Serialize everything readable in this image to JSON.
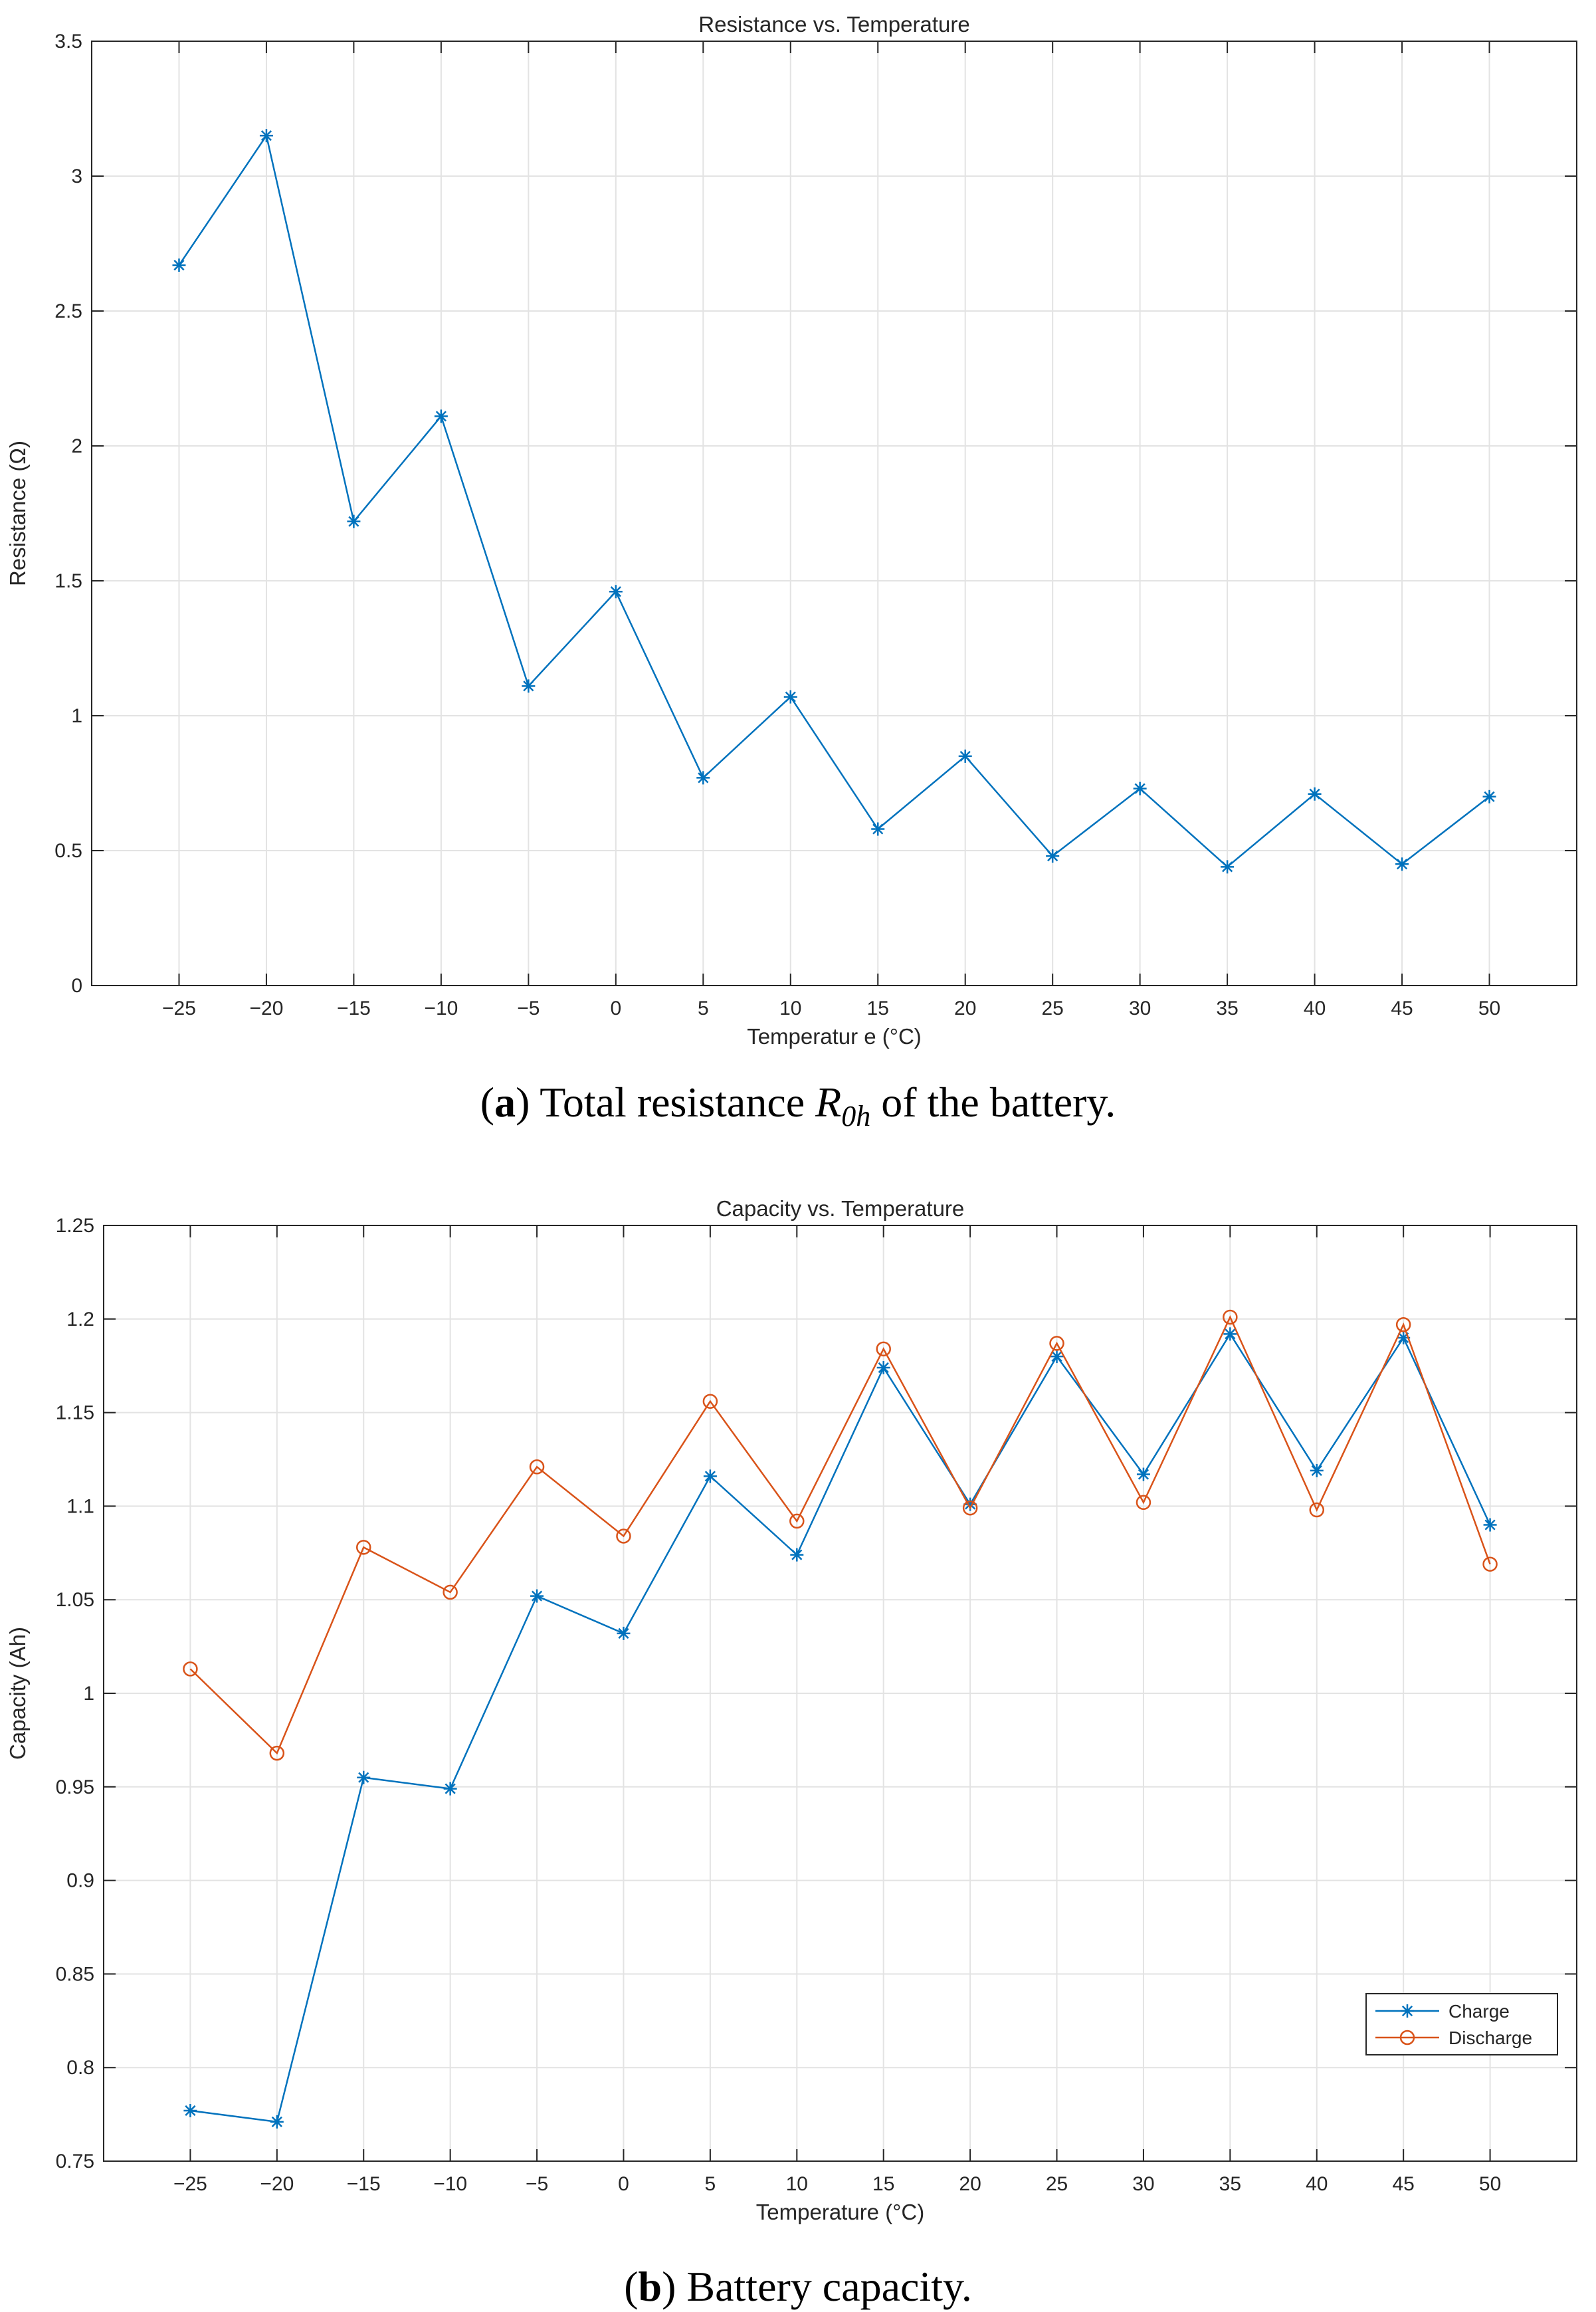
{
  "chart_data": [
    {
      "type": "line",
      "title": "Resistance vs.  Temperature",
      "xlabel": "Temperatur e (°C)",
      "ylabel": "Resistance (Ω)",
      "xlim": [
        -30,
        55
      ],
      "ylim": [
        0,
        3.5
      ],
      "xticks": [
        -25,
        -20,
        -15,
        -10,
        -5,
        0,
        5,
        10,
        15,
        20,
        25,
        30,
        35,
        40,
        45,
        50
      ],
      "xtick_labels": [
        "−25",
        "−20",
        "−15",
        "−10",
        "−5",
        "0",
        "5",
        "10",
        "15",
        "20",
        "25",
        "30",
        "35",
        "40",
        "45",
        "50"
      ],
      "yticks": [
        0,
        0.5,
        1,
        1.5,
        2,
        2.5,
        3,
        3.5
      ],
      "ytick_labels": [
        "0",
        "0.5",
        "1",
        "1.5",
        "2",
        "2.5",
        "3",
        "3.5"
      ],
      "grid": true,
      "x": [
        -25,
        -20,
        -15,
        -10,
        -5,
        0,
        5,
        10,
        15,
        20,
        25,
        30,
        35,
        40,
        45,
        50
      ],
      "series": [
        {
          "values": [
            2.67,
            3.15,
            1.72,
            2.11,
            1.11,
            1.46,
            0.77,
            1.07,
            0.58,
            0.85,
            0.48,
            0.73,
            0.44,
            0.71,
            0.45,
            0.7
          ],
          "color": "#0072BD",
          "marker": "asterisk"
        }
      ]
    },
    {
      "type": "line",
      "title": "Capacity vs.  Temperature",
      "xlabel": "Temperature (°C)",
      "ylabel": "Capacity (Ah)",
      "xlim": [
        -30,
        55
      ],
      "ylim": [
        0.75,
        1.25
      ],
      "xticks": [
        -25,
        -20,
        -15,
        -10,
        -5,
        0,
        5,
        10,
        15,
        20,
        25,
        30,
        35,
        40,
        45,
        50
      ],
      "xtick_labels": [
        "−25",
        "−20",
        "−15",
        "−10",
        "−5",
        "0",
        "5",
        "10",
        "15",
        "20",
        "25",
        "30",
        "35",
        "40",
        "45",
        "50"
      ],
      "yticks": [
        0.75,
        0.8,
        0.85,
        0.9,
        0.95,
        1,
        1.05,
        1.1,
        1.15,
        1.2,
        1.25
      ],
      "ytick_labels": [
        "0.75",
        "0.8",
        "0.85",
        "0.9",
        "0.95",
        "1",
        "1.05",
        "1.1",
        "1.15",
        "1.2",
        "1.25"
      ],
      "grid": true,
      "legend_position": "bottom-right",
      "x": [
        -25,
        -20,
        -15,
        -10,
        -5,
        0,
        5,
        10,
        15,
        20,
        25,
        30,
        35,
        40,
        45,
        50
      ],
      "series": [
        {
          "name": "Charge",
          "values": [
            0.777,
            0.771,
            0.955,
            0.949,
            1.052,
            1.032,
            1.116,
            1.074,
            1.174,
            1.101,
            1.18,
            1.117,
            1.192,
            1.119,
            1.19,
            1.09
          ],
          "color": "#0072BD",
          "marker": "asterisk"
        },
        {
          "name": "Discharge",
          "values": [
            1.013,
            0.968,
            1.078,
            1.054,
            1.121,
            1.084,
            1.156,
            1.092,
            1.184,
            1.099,
            1.187,
            1.102,
            1.201,
            1.098,
            1.197,
            1.069
          ],
          "color": "#D95319",
          "marker": "circle"
        }
      ]
    }
  ],
  "captions": [
    {
      "label": "a",
      "text_before": " Total resistance ",
      "math_main": "R",
      "math_sub": "0h",
      "text_after": " of the battery."
    },
    {
      "label": "b",
      "text_before": " Battery capacity.",
      "math_main": "",
      "math_sub": "",
      "text_after": ""
    }
  ]
}
